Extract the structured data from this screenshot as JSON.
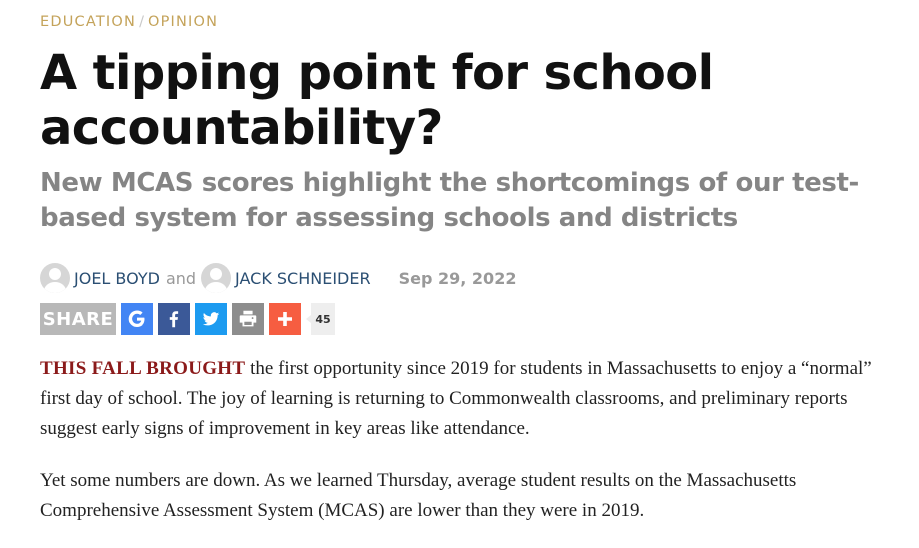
{
  "breadcrumb": {
    "items": [
      "EDUCATION",
      "OPINION"
    ],
    "separator": "/"
  },
  "article": {
    "title": "A tipping point for school accountability?",
    "subtitle": "New MCAS scores highlight the shortcomings of our test-based system for assessing schools and districts",
    "byline": {
      "authors": [
        "JOEL BOYD",
        "JACK SCHNEIDER"
      ],
      "conjunction": "and",
      "date": "Sep 29, 2022"
    },
    "paragraphs": [
      {
        "lead": "THIS FALL BROUGHT",
        "text": " the first opportunity since 2019 for students in Massachusetts to enjoy a “normal” first day of school. The joy of learning is returning to Commonwealth classrooms, and preliminary reports suggest early signs of improvement in key areas like attendance."
      },
      {
        "text": "Yet some numbers are down. As we learned Thursday, average student results on the Massachusetts Comprehensive Assessment System (MCAS) are lower than they were in 2019."
      }
    ]
  },
  "share": {
    "label": "SHARE",
    "count": "45",
    "buttons": [
      {
        "name": "google",
        "icon": "google-icon",
        "color": "#4285f4"
      },
      {
        "name": "facebook",
        "icon": "facebook-icon",
        "color": "#3b5998"
      },
      {
        "name": "twitter",
        "icon": "twitter-icon",
        "color": "#1d9bf0"
      },
      {
        "name": "print",
        "icon": "print-icon",
        "color": "#8d8d8d"
      },
      {
        "name": "more",
        "icon": "plus-icon",
        "color": "#f65d41"
      }
    ]
  },
  "colors": {
    "breadcrumb": "#c4a35a",
    "title": "#111111",
    "subtitle": "#858585",
    "author_link": "#2b4f73",
    "lead_in": "#8b1a1a"
  }
}
